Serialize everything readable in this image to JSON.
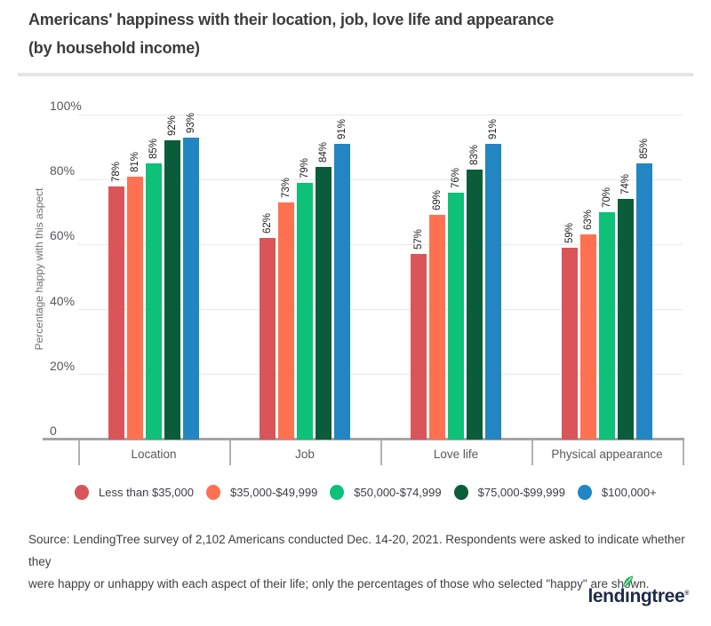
{
  "header": {
    "title": "Americans' happiness with their location, job, love life and appearance",
    "subtitle": "(by household income)"
  },
  "chart_data": {
    "type": "bar",
    "title": "Americans' happiness with their location, job, love life and appearance (by household income)",
    "categories": [
      "Location",
      "Job",
      "Love life",
      "Physical appearance"
    ],
    "series": [
      {
        "name": "Less than $35,000",
        "color": "#d95559",
        "values": [
          78,
          62,
          57,
          59
        ]
      },
      {
        "name": "$35,000-$49,999",
        "color": "#ff7150",
        "values": [
          81,
          73,
          69,
          63
        ]
      },
      {
        "name": "$50,000-$74,999",
        "color": "#0dc178",
        "values": [
          85,
          79,
          76,
          70
        ]
      },
      {
        "name": "$75,000-$99,999",
        "color": "#0a5c3a",
        "values": [
          92,
          84,
          83,
          74
        ]
      },
      {
        "name": "$100,000+",
        "color": "#2286c3",
        "values": [
          93,
          91,
          91,
          85
        ]
      }
    ],
    "xlabel": "",
    "ylabel": "Percentage happy with this aspect",
    "yticks": [
      "100%",
      "80%",
      "60%",
      "40%",
      "20%",
      "0"
    ],
    "ylim": [
      0,
      100
    ],
    "grid": true,
    "legend_position": "bottom",
    "value_suffix": "%"
  },
  "footer": {
    "source_line1": "Source: LendingTree survey of 2,102 Americans conducted Dec. 14-20, 2021. Respondents were asked to indicate whether they",
    "source_line2": "were happy or unhappy with each aspect of their life; only the percentages of those who selected \"happy\" are shown.",
    "logo": {
      "left": "lend",
      "i": "ı",
      "right": "ngtree",
      "reg": "®"
    }
  },
  "colors": {
    "title_text": "#3c3c3c",
    "axis_text": "#56565e",
    "gridline": "#e9eaeb",
    "axis_line": "#a5a5a5",
    "logo_navy": "#1e2b49",
    "logo_leaf_green": "#27b259"
  }
}
